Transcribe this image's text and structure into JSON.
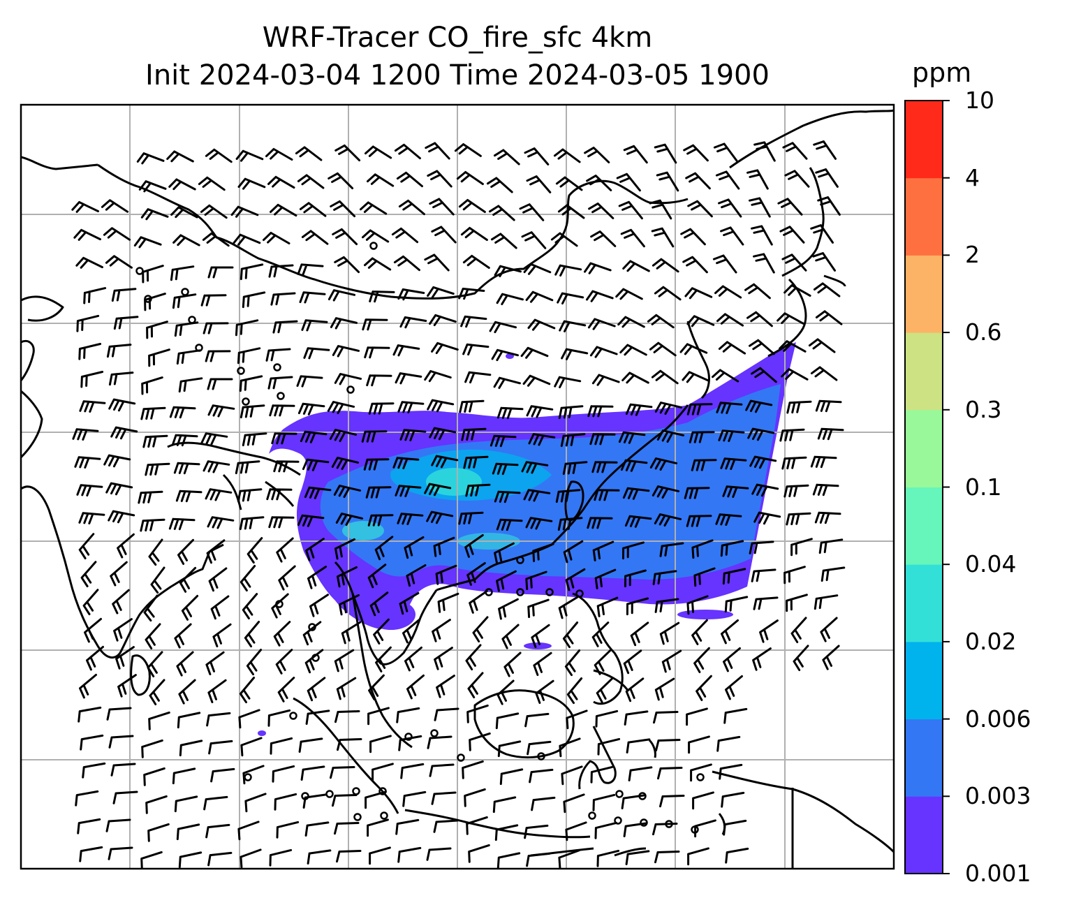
{
  "title": {
    "line1": "WRF-Tracer CO_fire_sfc 4km",
    "line2": "Init 2024-03-04 1200 Time 2024-03-05 1900"
  },
  "colorbar": {
    "unit": "ppm",
    "levels": [
      "0.001",
      "0.003",
      "0.006",
      "0.02",
      "0.04",
      "0.1",
      "0.3",
      "0.6",
      "2",
      "4",
      "10"
    ],
    "colors": [
      "#6633ff",
      "#3377f5",
      "#00b3ec",
      "#33e0d8",
      "#66f5bb",
      "#99f99a",
      "#cde283",
      "#fdb366",
      "#ff7040",
      "#ff2a1a"
    ]
  },
  "map": {
    "coastline_color": "#000000",
    "gridline_color": "#b0b0b0",
    "barb_color": "#000000"
  }
}
